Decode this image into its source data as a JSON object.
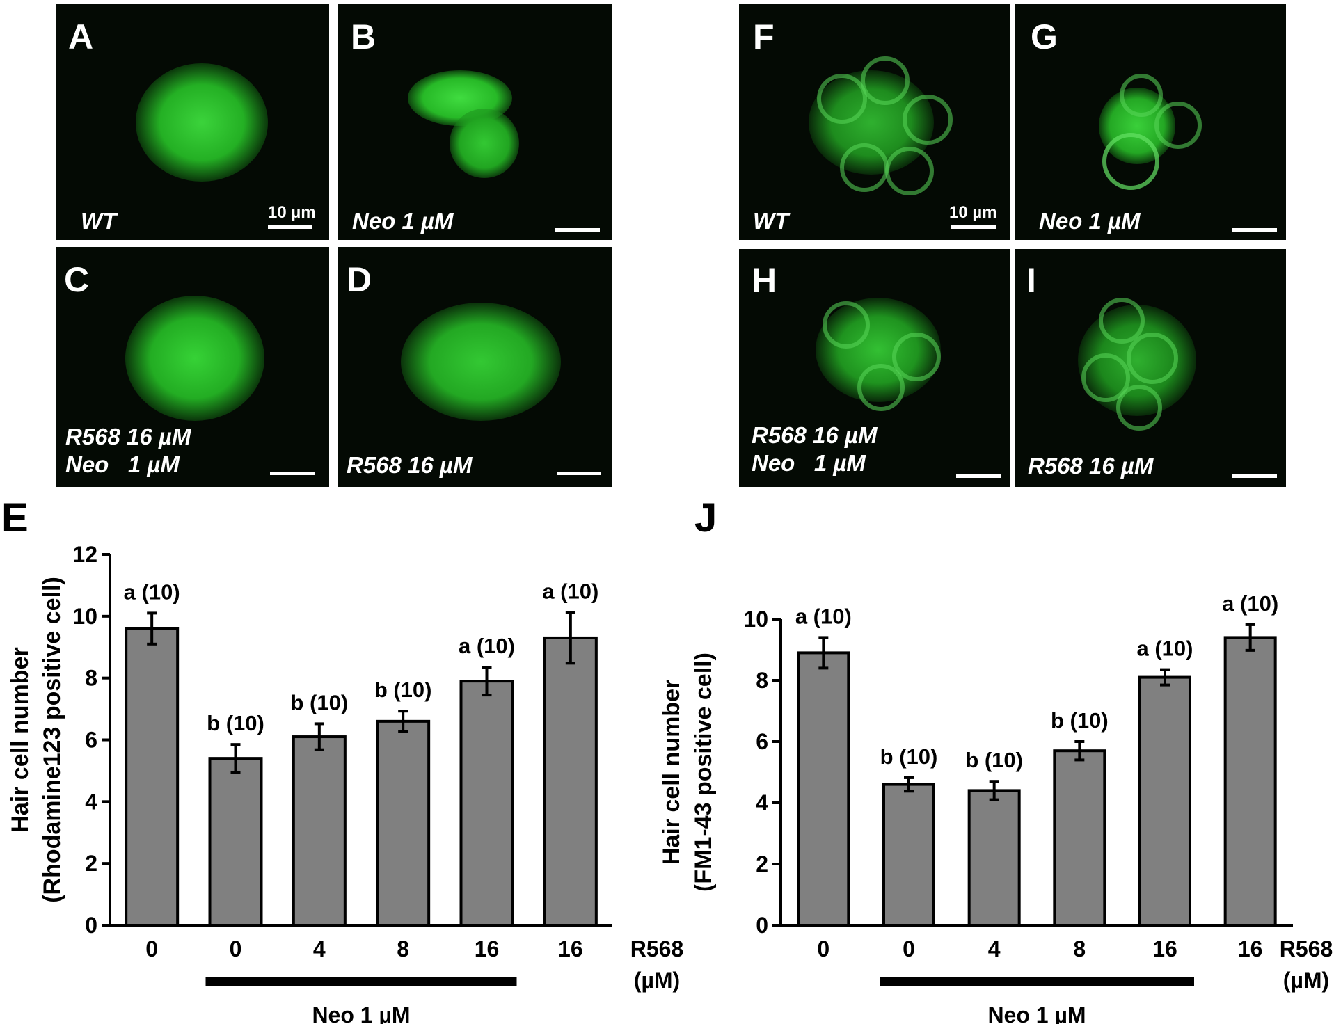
{
  "panels": [
    {
      "id": "A",
      "label": "A",
      "condition": "WT",
      "scale_label": "10 µm"
    },
    {
      "id": "B",
      "label": "B",
      "condition": "Neo 1 µM",
      "scale_label": ""
    },
    {
      "id": "C",
      "label": "C",
      "condition": "R568 16 µM\nNeo   1 µM",
      "scale_label": ""
    },
    {
      "id": "D",
      "label": "D",
      "condition": "R568 16 µM",
      "scale_label": ""
    },
    {
      "id": "F",
      "label": "F",
      "condition": "WT",
      "scale_label": "10 µm"
    },
    {
      "id": "G",
      "label": "G",
      "condition": "Neo 1 µM",
      "scale_label": ""
    },
    {
      "id": "H",
      "label": "H",
      "condition": "R568 16 µM\nNeo   1 µM",
      "scale_label": ""
    },
    {
      "id": "I",
      "label": "I",
      "condition": "R568 16 µM",
      "scale_label": ""
    }
  ],
  "chart_data": [
    {
      "panel_label": "E",
      "type": "bar",
      "ylabel_line1": "Hair cell number",
      "ylabel_line2": "(Rhodamine123 positive cell)",
      "ylim": [
        0,
        12
      ],
      "yticks": [
        "0",
        "2",
        "4",
        "6",
        "8",
        "10",
        "12"
      ],
      "categories": [
        "0",
        "0",
        "4",
        "8",
        "16",
        "16"
      ],
      "values": [
        9.6,
        5.4,
        6.1,
        6.6,
        7.9,
        9.3
      ],
      "errors": [
        0.5,
        0.45,
        0.42,
        0.33,
        0.45,
        0.82
      ],
      "annotations": [
        "a (10)",
        "b (10)",
        "b (10)",
        "b (10)",
        "a (10)",
        "a (10)"
      ],
      "xaxis_label_line1": "R568",
      "xaxis_label_line2": "(µM)",
      "bracket_label": "Neo 1 µM",
      "bar_color": "#808080"
    },
    {
      "panel_label": "J",
      "type": "bar",
      "ylabel_line1": "Hair cell number",
      "ylabel_line2": "(FM1-43 positive cell)",
      "ylim": [
        0,
        10
      ],
      "yticks": [
        "0",
        "2",
        "4",
        "6",
        "8",
        "10"
      ],
      "categories": [
        "0",
        "0",
        "4",
        "8",
        "16",
        "16"
      ],
      "values": [
        8.9,
        4.6,
        4.4,
        5.7,
        8.1,
        9.4
      ],
      "errors": [
        0.5,
        0.22,
        0.3,
        0.3,
        0.25,
        0.42
      ],
      "annotations": [
        "a (10)",
        "b (10)",
        "b (10)",
        "b (10)",
        "a (10)",
        "a (10)"
      ],
      "xaxis_label_line1": "R568",
      "xaxis_label_line2": "(µM)",
      "bracket_label": "Neo 1 µM",
      "bar_color": "#808080"
    }
  ]
}
